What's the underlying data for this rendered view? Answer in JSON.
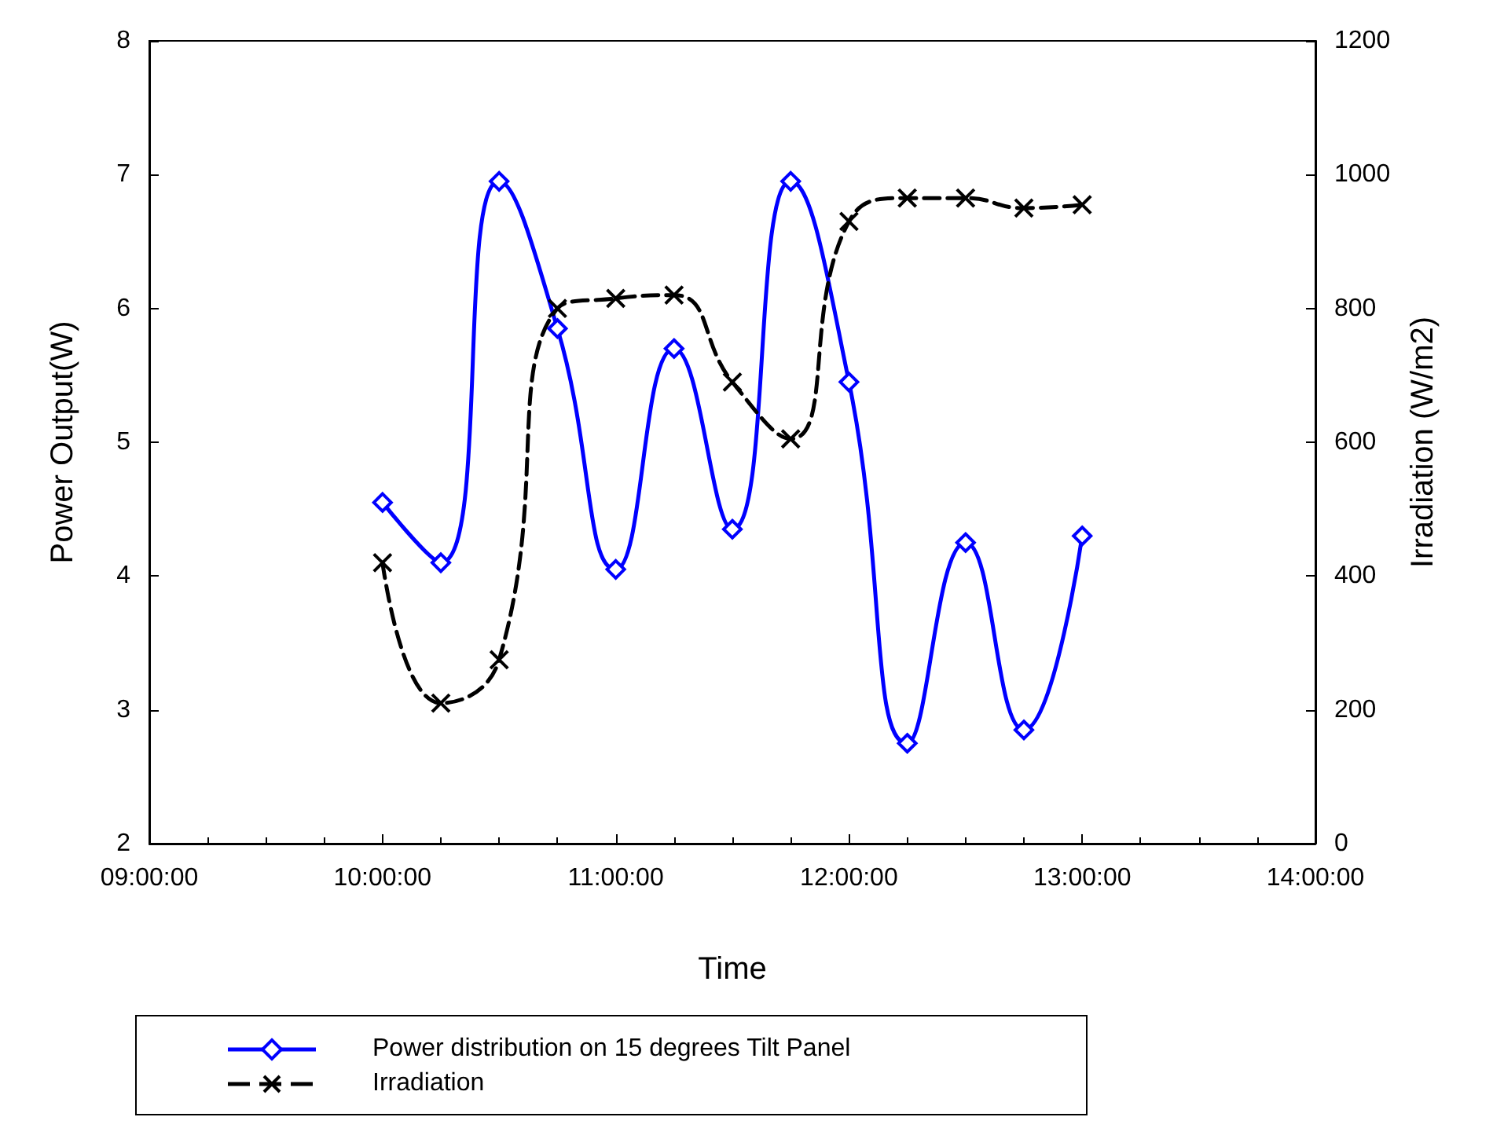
{
  "chart_data": {
    "type": "line",
    "xlabel": "Time",
    "ylabel": "Power Output(W)",
    "y2label": "Irradiation (W/m2)",
    "x": [
      10,
      10.25,
      10.5,
      10.75,
      11,
      11.25,
      11.5,
      11.75,
      12,
      12.25,
      12.5,
      12.75,
      13
    ],
    "xlim": [
      9,
      14
    ],
    "xticks": [
      {
        "value": 9,
        "label": "09:00:00"
      },
      {
        "value": 10,
        "label": "10:00:00"
      },
      {
        "value": 11,
        "label": "11:00:00"
      },
      {
        "value": 12,
        "label": "12:00:00"
      },
      {
        "value": 13,
        "label": "13:00:00"
      },
      {
        "value": 14,
        "label": "14:00:00"
      }
    ],
    "ylim": [
      2,
      8
    ],
    "yticks": [
      2,
      3,
      4,
      5,
      6,
      7,
      8
    ],
    "y2lim": [
      0,
      1200
    ],
    "y2ticks": [
      0,
      200,
      400,
      600,
      800,
      1000,
      1200
    ],
    "series": [
      {
        "name": "Power distribution on 15 degrees Tilt Panel",
        "color": "#0000ff",
        "marker": "diamond",
        "line_style": "solid",
        "values": [
          4.55,
          4.1,
          6.95,
          5.85,
          4.05,
          5.7,
          4.35,
          6.95,
          5.45,
          2.75,
          4.25,
          2.85,
          4.3
        ]
      },
      {
        "name": "Irradiation",
        "color": "#000000",
        "marker": "cross",
        "line_style": "dashed",
        "axis": "y2",
        "values": [
          420,
          210,
          275,
          800,
          815,
          820,
          690,
          605,
          930,
          965,
          965,
          950,
          955
        ]
      }
    ],
    "legend": "bottom",
    "grid": false
  }
}
